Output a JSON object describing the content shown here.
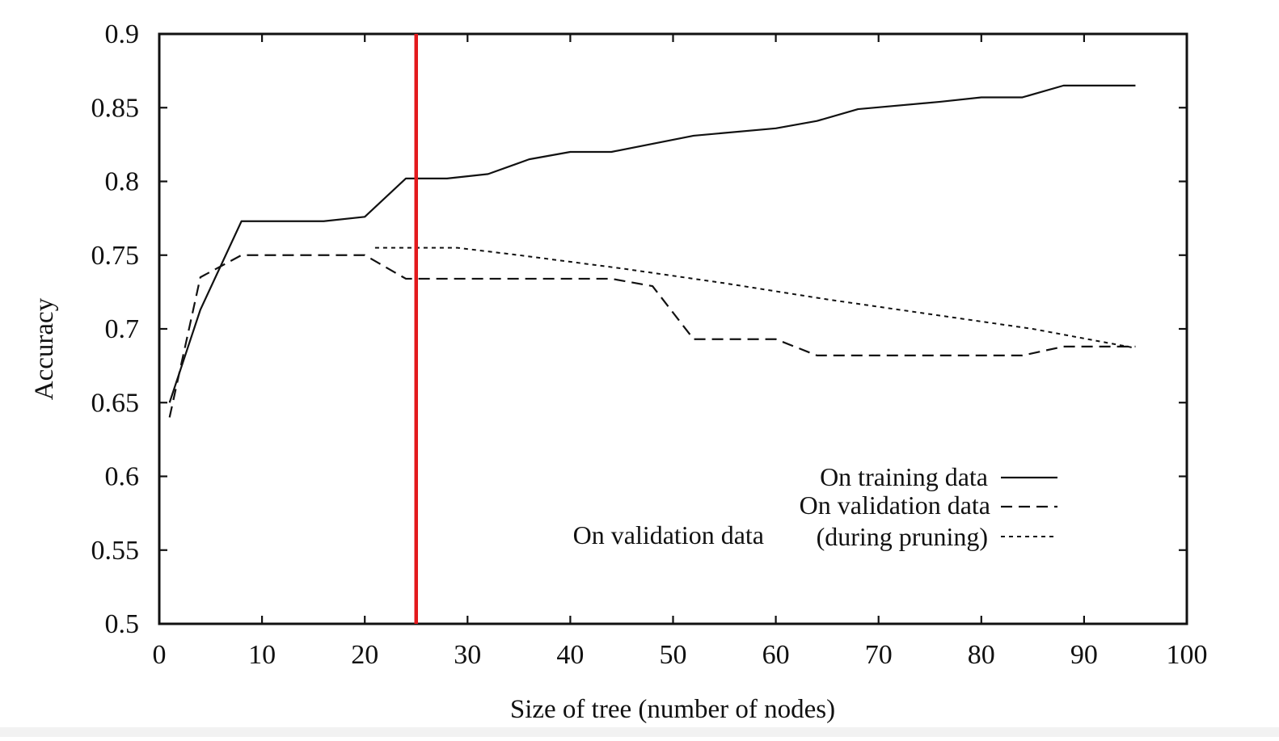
{
  "chart_data": {
    "type": "line",
    "xlabel": "Size of tree (number of nodes)",
    "ylabel": "Accuracy",
    "xlim": [
      0,
      100
    ],
    "ylim": [
      0.5,
      0.9
    ],
    "x_ticks": [
      0,
      10,
      20,
      30,
      40,
      50,
      60,
      70,
      80,
      90,
      100
    ],
    "y_ticks": [
      0.5,
      0.55,
      0.6,
      0.65,
      0.7,
      0.75,
      0.8,
      0.85,
      0.9
    ],
    "x_tick_labels": [
      "0",
      "10",
      "20",
      "30",
      "40",
      "50",
      "60",
      "70",
      "80",
      "90",
      "100"
    ],
    "y_tick_labels": [
      "0.5",
      "0.55",
      "0.6",
      "0.65",
      "0.7",
      "0.75",
      "0.8",
      "0.85",
      "0.9"
    ],
    "grid": false,
    "legend_position": "bottom-right",
    "marker_line": {
      "x": 25,
      "color": "#e3191c"
    },
    "series": [
      {
        "name": "On training data",
        "style": "solid",
        "color": "#111111",
        "points": [
          [
            1,
            0.65
          ],
          [
            4,
            0.713
          ],
          [
            8,
            0.773
          ],
          [
            16,
            0.773
          ],
          [
            20,
            0.776
          ],
          [
            24,
            0.802
          ],
          [
            28,
            0.802
          ],
          [
            32,
            0.805
          ],
          [
            36,
            0.815
          ],
          [
            40,
            0.82
          ],
          [
            44,
            0.82
          ],
          [
            52,
            0.831
          ],
          [
            60,
            0.836
          ],
          [
            64,
            0.841
          ],
          [
            68,
            0.849
          ],
          [
            76,
            0.854
          ],
          [
            80,
            0.857
          ],
          [
            84,
            0.857
          ],
          [
            88,
            0.865
          ],
          [
            95,
            0.865
          ]
        ]
      },
      {
        "name": "On validation data",
        "style": "dashed",
        "color": "#111111",
        "points": [
          [
            1,
            0.64
          ],
          [
            4,
            0.735
          ],
          [
            8,
            0.75
          ],
          [
            20,
            0.75
          ],
          [
            24,
            0.734
          ],
          [
            44,
            0.734
          ],
          [
            48,
            0.729
          ],
          [
            52,
            0.693
          ],
          [
            60,
            0.693
          ],
          [
            64,
            0.682
          ],
          [
            84,
            0.682
          ],
          [
            88,
            0.688
          ],
          [
            95,
            0.688
          ]
        ]
      },
      {
        "name": "On validation data (during pruning)",
        "style": "dotted",
        "color": "#111111",
        "points": [
          [
            21,
            0.755
          ],
          [
            29,
            0.755
          ],
          [
            35,
            0.75
          ],
          [
            45,
            0.741
          ],
          [
            55,
            0.731
          ],
          [
            65,
            0.72
          ],
          [
            75,
            0.71
          ],
          [
            85,
            0.7
          ],
          [
            95,
            0.687
          ]
        ]
      }
    ],
    "legend": {
      "line1": "On training data",
      "line2": "On validation data",
      "line3_left": "On validation data",
      "line3_right": "(during pruning)"
    }
  }
}
